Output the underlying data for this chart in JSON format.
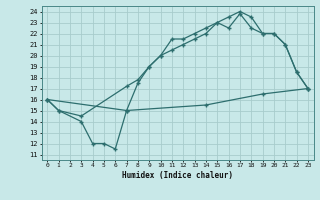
{
  "bg_color": "#c8e8e8",
  "grid_color": "#a8cccc",
  "line_color": "#2d6e6e",
  "xlabel": "Humidex (Indice chaleur)",
  "xlim": [
    -0.5,
    23.5
  ],
  "ylim": [
    10.5,
    24.5
  ],
  "xticks": [
    0,
    1,
    2,
    3,
    4,
    5,
    6,
    7,
    8,
    9,
    10,
    11,
    12,
    13,
    14,
    15,
    16,
    17,
    18,
    19,
    20,
    21,
    22,
    23
  ],
  "yticks": [
    11,
    12,
    13,
    14,
    15,
    16,
    17,
    18,
    19,
    20,
    21,
    22,
    23,
    24
  ],
  "line1_x": [
    0,
    1,
    3,
    4,
    5,
    6,
    7,
    8,
    9,
    10,
    11,
    12,
    13,
    14,
    15,
    16,
    17,
    18,
    19,
    20,
    21,
    22,
    23
  ],
  "line1_y": [
    16,
    15,
    14,
    12,
    12,
    11.5,
    15,
    17.5,
    19,
    20,
    20.5,
    21,
    21.5,
    22,
    23,
    23.5,
    24,
    23.5,
    22,
    22,
    21,
    18.5,
    17
  ],
  "line2_x": [
    0,
    1,
    3,
    7,
    8,
    9,
    10,
    11,
    12,
    13,
    14,
    15,
    16,
    17,
    18,
    19,
    20,
    21,
    22,
    23
  ],
  "line2_y": [
    16,
    15,
    14.5,
    17.2,
    17.8,
    19,
    20,
    21.5,
    21.5,
    22,
    22.5,
    23,
    22.5,
    23.8,
    22.5,
    22,
    22,
    21,
    18.5,
    17
  ],
  "line3_x": [
    0,
    7,
    14,
    19,
    23
  ],
  "line3_y": [
    16,
    15,
    15.5,
    16.5,
    17
  ]
}
